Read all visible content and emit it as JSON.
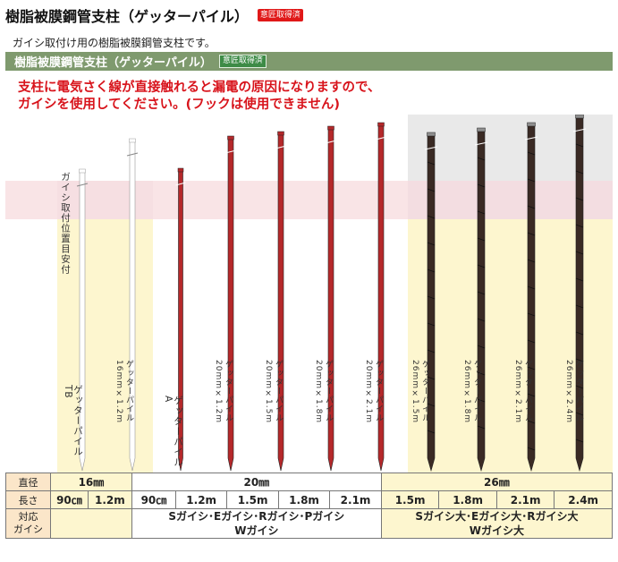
{
  "header": {
    "title": "樹脂被膜鋼管支柱（ゲッターパイル）",
    "badge": "意匠取得済",
    "subtitle": "ガイシ取付け用の樹脂被膜鋼管支柱です。"
  },
  "green_bar": {
    "title": "樹脂被膜鋼管支柱（ゲッターパイル）",
    "badge": "意匠取得済"
  },
  "warning": {
    "line1": "支柱に電気さく線が直接触れると漏電の原因になりますので、",
    "line2": "ガイシを使用してください。(フックは使用できません)"
  },
  "figure": {
    "mount_label": "ガイシ取付位置目安付",
    "poles": [
      {
        "label": "ゲッターパイルTB",
        "color": "#ffffff"
      },
      {
        "label": "ゲッターパイル16mm×1.2m",
        "color": "#ffffff"
      },
      {
        "label": "ゲッターパイルA",
        "color": "#b5282a"
      },
      {
        "label": "ゲッターパイル20mm×1.2m",
        "color": "#b5282a"
      },
      {
        "label": "ゲッターパイル20mm×1.5m",
        "color": "#b5282a"
      },
      {
        "label": "ゲッターパイル20mm×1.8m",
        "color": "#b5282a"
      },
      {
        "label": "ゲッターパイル20mm×2.1m",
        "color": "#b5282a"
      },
      {
        "label": "ゲッターパイル26mm×1.5m",
        "color": "#3a2a24"
      },
      {
        "label": "ゲッターパイル26mm×1.8m",
        "color": "#3a2a24"
      },
      {
        "label": "ゲッターパイル26mm×2.1m",
        "color": "#3a2a24"
      },
      {
        "label": "ゲッターパイル26mm×2.4m",
        "color": "#3a2a24"
      }
    ]
  },
  "table": {
    "diameter_label": "直径",
    "length_label": "長さ",
    "insulator_label_1": "対応",
    "insulator_label_2": "ガイシ",
    "diameters": [
      "16㎜",
      "20㎜",
      "26㎜"
    ],
    "lengths": [
      "90㎝",
      "1.2m",
      "90㎝",
      "1.2m",
      "1.5m",
      "1.8m",
      "2.1m",
      "1.5m",
      "1.8m",
      "2.1m",
      "2.4m"
    ],
    "insulators_mid_1": "Sガイシ･Eガイシ･Rガイシ･Pガイシ",
    "insulators_mid_2": "Wガイシ",
    "insulators_right_1": "Sガイシ大･Eガイシ大･Rガイシ大",
    "insulators_right_2": "Wガイシ大"
  }
}
